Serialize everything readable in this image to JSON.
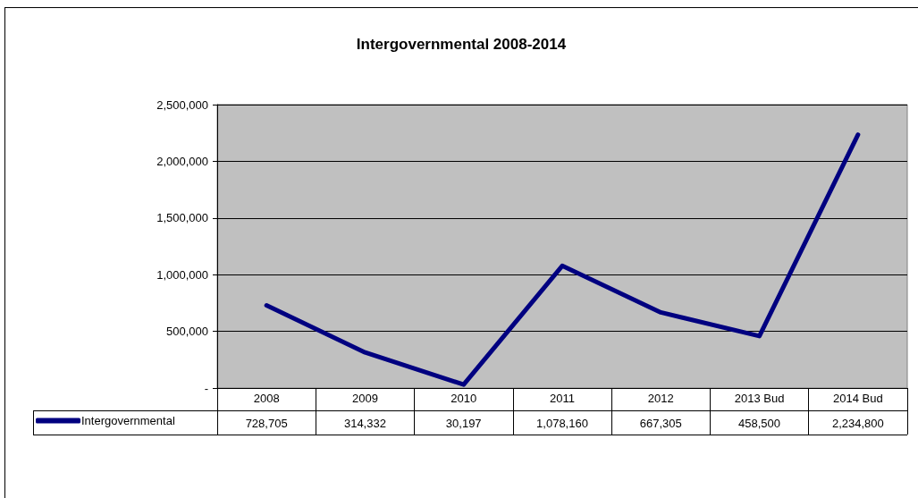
{
  "chart_data": {
    "type": "line",
    "title": "Intergovernmental 2008-2014",
    "categories": [
      "2008",
      "2009",
      "2010",
      "2011",
      "2012",
      "2013 Bud",
      "2014 Bud"
    ],
    "series": [
      {
        "name": "Intergovernmental",
        "color": "#000080",
        "values": [
          728705,
          314332,
          30197,
          1078160,
          667305,
          458500,
          2234800
        ],
        "value_labels": [
          "728,705",
          "314,332",
          "30,197",
          "1,078,160",
          "667,305",
          "458,500",
          "2,234,800"
        ]
      }
    ],
    "ylim": [
      0,
      2500000
    ],
    "yticks": [
      {
        "value": 0,
        "label": "-"
      },
      {
        "value": 500000,
        "label": "500,000"
      },
      {
        "value": 1000000,
        "label": "1,000,000"
      },
      {
        "value": 1500000,
        "label": "1,500,000"
      },
      {
        "value": 2000000,
        "label": "2,000,000"
      },
      {
        "value": 2500000,
        "label": "2,500,000"
      }
    ],
    "grid": "y",
    "legend": "bottom left",
    "marker": "none",
    "line_style": "solid"
  }
}
